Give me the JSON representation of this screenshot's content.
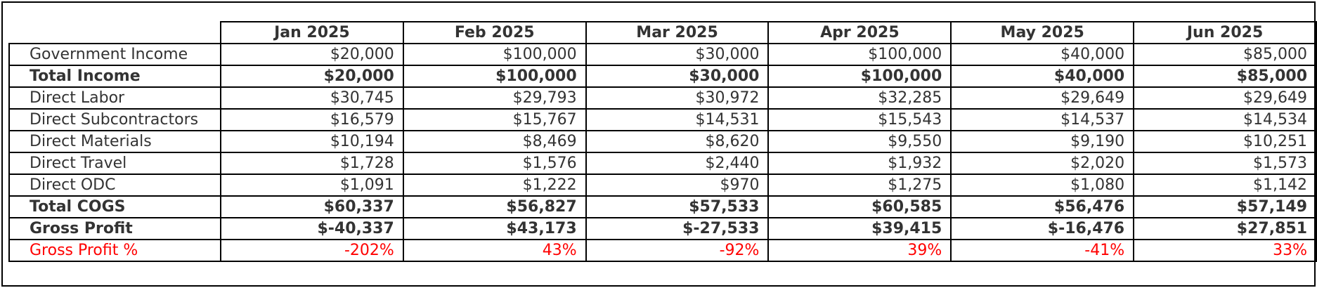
{
  "table": {
    "columns": [
      "Jan 2025",
      "Feb 2025",
      "Mar 2025",
      "Apr 2025",
      "May 2025",
      "Jun 2025"
    ],
    "rows": [
      {
        "label": "Government Income",
        "style": "normal",
        "cells": [
          "$20,000",
          "$100,000",
          "$30,000",
          "$100,000",
          "$40,000",
          "$85,000"
        ]
      },
      {
        "label": "Total Income",
        "style": "bold",
        "cells": [
          "$20,000",
          "$100,000",
          "$30,000",
          "$100,000",
          "$40,000",
          "$85,000"
        ]
      },
      {
        "label": "Direct Labor",
        "style": "normal",
        "cells": [
          "$30,745",
          "$29,793",
          "$30,972",
          "$32,285",
          "$29,649",
          "$29,649"
        ]
      },
      {
        "label": "Direct Subcontractors",
        "style": "normal",
        "cells": [
          "$16,579",
          "$15,767",
          "$14,531",
          "$15,543",
          "$14,537",
          "$14,534"
        ]
      },
      {
        "label": "Direct Materials",
        "style": "normal",
        "cells": [
          "$10,194",
          "$8,469",
          "$8,620",
          "$9,550",
          "$9,190",
          "$10,251"
        ]
      },
      {
        "label": "Direct Travel",
        "style": "normal",
        "cells": [
          "$1,728",
          "$1,576",
          "$2,440",
          "$1,932",
          "$2,020",
          "$1,573"
        ]
      },
      {
        "label": "Direct ODC",
        "style": "normal",
        "cells": [
          "$1,091",
          "$1,222",
          "$970",
          "$1,275",
          "$1,080",
          "$1,142"
        ]
      },
      {
        "label": "Total COGS",
        "style": "bold",
        "cells": [
          "$60,337",
          "$56,827",
          "$57,533",
          "$60,585",
          "$56,476",
          "$57,149"
        ]
      },
      {
        "label": "Gross Profit",
        "style": "bold",
        "cells": [
          "$-40,337",
          "$43,173",
          "$-27,533",
          "$39,415",
          "$-16,476",
          "$27,851"
        ]
      },
      {
        "label": "Gross Profit %",
        "style": "red",
        "cells": [
          "-202%",
          "43%",
          "-92%",
          "39%",
          "-41%",
          "33%"
        ]
      }
    ]
  }
}
